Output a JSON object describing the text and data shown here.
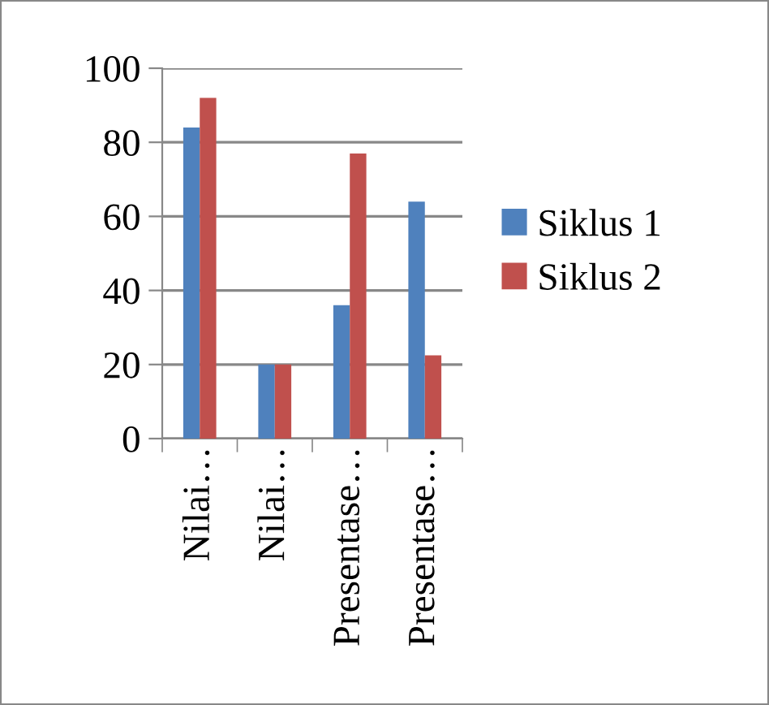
{
  "chart_data": {
    "type": "bar",
    "categories": [
      "Nilai…",
      "Nilai…",
      "Presentase…",
      "Presentase…"
    ],
    "series": [
      {
        "name": "Siklus 1",
        "color": "#4f81bd",
        "values": [
          84,
          20,
          36,
          64
        ]
      },
      {
        "name": "Siklus 2",
        "color": "#c0504d",
        "values": [
          92,
          20,
          77,
          22.5
        ]
      }
    ],
    "ylim": [
      0,
      100
    ],
    "yticks": [
      0,
      20,
      40,
      60,
      80,
      100
    ],
    "grid": "y",
    "legend": "right"
  }
}
